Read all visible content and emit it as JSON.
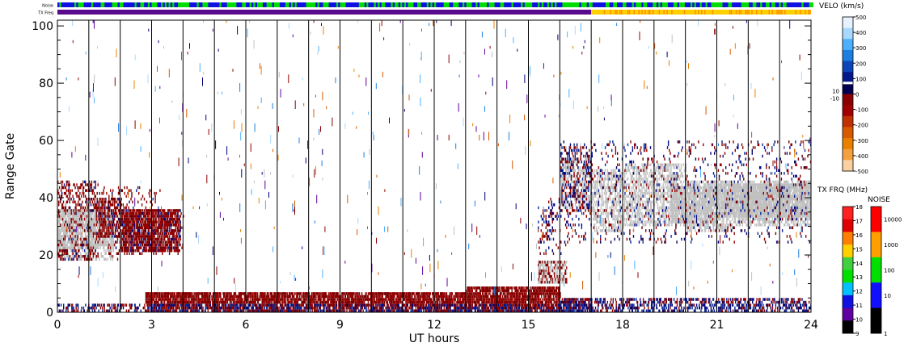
{
  "chart_data": {
    "type": "heatmap",
    "title": "",
    "xlabel": "UT hours",
    "ylabel": "Range Gate",
    "xlim": [
      0,
      24
    ],
    "ylim": [
      0,
      102
    ],
    "x_ticks": [
      0,
      3,
      6,
      9,
      12,
      15,
      18,
      21,
      24
    ],
    "y_ticks": [
      0,
      20,
      40,
      60,
      80,
      100
    ],
    "x_tick_labels": [
      "0",
      "3",
      "6",
      "9",
      "12",
      "15",
      "18",
      "21",
      "24"
    ],
    "y_tick_labels": [
      "0",
      "20",
      "40",
      "60",
      "80",
      "100"
    ],
    "hour_marker_lines": [
      1,
      2,
      3,
      4,
      5,
      6,
      7,
      8,
      9,
      10,
      11,
      12,
      13,
      14,
      15,
      16,
      17,
      18,
      19,
      20,
      21,
      22,
      23
    ],
    "top_strips": [
      {
        "label": "Noise",
        "colors": [
          "#00dd00",
          "#1010e0"
        ],
        "note": "alternating"
      },
      {
        "label": "TX Freq",
        "segments": [
          {
            "from": 0,
            "to": 17,
            "color": "#5a0a8c"
          },
          {
            "from": 17,
            "to": 24,
            "color": "#ffd000"
          }
        ]
      }
    ],
    "scatter_regions": [
      {
        "name": "ground-scatter-early",
        "x": [
          0,
          1.8
        ],
        "y": [
          18,
          36
        ],
        "color": "#c0c0c0"
      },
      {
        "name": "neg-velocity-early",
        "x": [
          0,
          4
        ],
        "y": [
          18,
          46
        ],
        "color": "#8b0000"
      },
      {
        "name": "near-range-band",
        "x": [
          0,
          24
        ],
        "y": [
          0,
          8
        ],
        "color": "#8b0000"
      },
      {
        "name": "near-range-positive",
        "x": [
          0,
          24
        ],
        "y": [
          0,
          4
        ],
        "color": "#000080"
      },
      {
        "name": "ground-scatter-late",
        "x": [
          16,
          24
        ],
        "y": [
          28,
          58
        ],
        "color": "#c0c0c0"
      },
      {
        "name": "mixed-late",
        "x": [
          15.5,
          24
        ],
        "y": [
          20,
          60
        ],
        "color": "#8b0000"
      }
    ],
    "velocity_colorbar": {
      "title": "VELO (km/s)",
      "tick_labels": [
        "500",
        "400",
        "300",
        "200",
        "100",
        "0",
        "-100",
        "-200",
        "-300",
        "-400",
        "-500"
      ],
      "values": [
        500,
        400,
        300,
        200,
        100,
        0,
        -100,
        -200,
        -300,
        -400,
        -500
      ],
      "small_labels": [
        "10",
        "-10"
      ],
      "colors": [
        "#e6f2ff",
        "#a8d8ff",
        "#4db0ff",
        "#1c7fe0",
        "#0b45b8",
        "#051a8a",
        "#000050",
        "#8b0000",
        "#a00000",
        "#c03000",
        "#d85a00",
        "#e88000",
        "#f4a040",
        "#fad0a0"
      ]
    },
    "txfreq_colorbar": {
      "title": "TX FRQ (MHz)",
      "tick_labels": [
        "18",
        "17",
        "16",
        "15",
        "14",
        "13",
        "12",
        "11",
        "10",
        "9"
      ],
      "values": [
        18,
        17,
        16,
        15,
        14,
        13,
        12,
        11,
        10,
        9
      ],
      "colors": [
        "#ff2020",
        "#e00000",
        "#ff8000",
        "#ffd000",
        "#40d040",
        "#00e000",
        "#00c0ff",
        "#1010e0",
        "#6000a0",
        "#000000"
      ]
    },
    "noise_colorbar": {
      "title": "NOISE",
      "tick_labels": [
        "10000",
        "1000",
        "100",
        "10",
        "1"
      ],
      "values": [
        10000,
        1000,
        100,
        10,
        1
      ],
      "colors": [
        "#ff0000",
        "#ffa000",
        "#00e000",
        "#1010ff",
        "#000000"
      ]
    }
  }
}
